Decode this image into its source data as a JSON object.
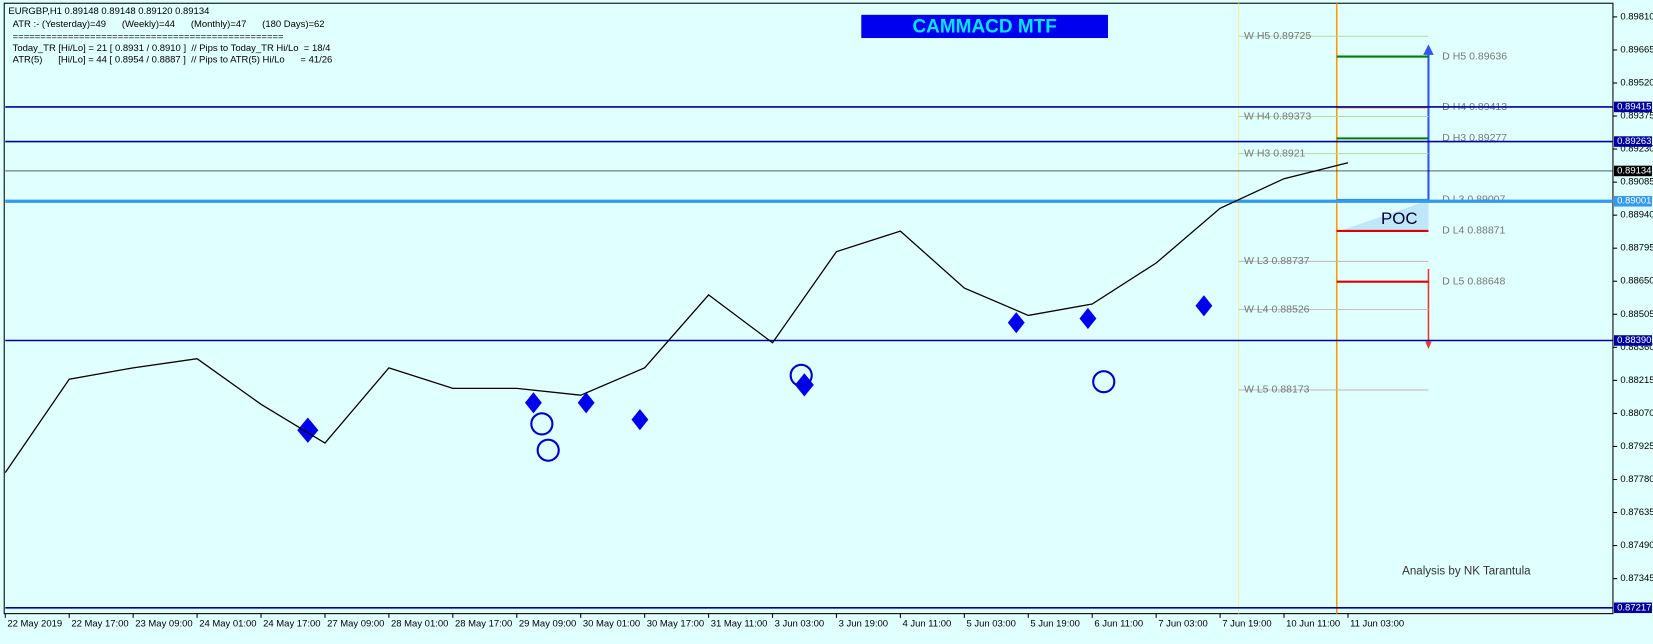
{
  "header": {
    "symbol_line": "EURGBP,H1  0.89148 0.89148 0.89120 0.89134",
    "atr_line": "ATR :- (Yesterday)=49      (Weekly)=44      (Monthly)=47      (180 Days)=62",
    "separator": "=================================================",
    "today_line": "Today_TR [Hi/Lo] = 21 [ 0.8931 / 0.8910 ]  // Pips to Today_TR Hi/Lo  = 18/4",
    "atr5_line": "ATR(5)      [Hi/Lo] = 44 [ 0.8954 / 0.8887 ]  // Pips to ATR(5) Hi/Lo      = 41/26"
  },
  "chart_data": {
    "type": "line",
    "title": "CAMMACD MTF",
    "categories": [
      "22 May 2019",
      "22 May 17:00",
      "23 May 09:00",
      "24 May 01:00",
      "24 May 17:00",
      "27 May 09:00",
      "28 May 01:00",
      "28 May 17:00",
      "29 May 09:00",
      "30 May 01:00",
      "30 May 17:00",
      "31 May 11:00",
      "3 Jun 03:00",
      "3 Jun 19:00",
      "4 Jun 11:00",
      "5 Jun 03:00",
      "5 Jun 19:00",
      "6 Jun 11:00",
      "7 Jun 03:00",
      "7 Jun 19:00",
      "10 Jun 11:00",
      "11 Jun 03:00"
    ],
    "series": [
      {
        "name": "EURGBP",
        "color": "#000000",
        "values": [
          0.8781,
          0.8822,
          0.8827,
          0.8831,
          0.8811,
          0.8794,
          0.8827,
          0.8818,
          0.8818,
          0.8815,
          0.8827,
          0.8859,
          0.8838,
          0.8878,
          0.8887,
          0.8862,
          0.885,
          0.8855,
          0.8873,
          0.8897,
          0.891,
          0.8917
        ]
      }
    ],
    "ylim": [
      0.87122,
      0.8987
    ],
    "yticks": [
      {
        "value": 0.8981,
        "label": "0.89810"
      },
      {
        "value": 0.89665,
        "label": "0.89665"
      },
      {
        "value": 0.8952,
        "label": "0.89520"
      },
      {
        "value": 0.89375,
        "label": "0.89375"
      },
      {
        "value": 0.8923,
        "label": "0.89230"
      },
      {
        "value": 0.89085,
        "label": "0.89085"
      },
      {
        "value": 0.8894,
        "label": "0.88940"
      },
      {
        "value": 0.88795,
        "label": "0.88795"
      },
      {
        "value": 0.8865,
        "label": "0.88650"
      },
      {
        "value": 0.88505,
        "label": "0.88505"
      },
      {
        "value": 0.8836,
        "label": "0.88360"
      },
      {
        "value": 0.88215,
        "label": "0.88215"
      },
      {
        "value": 0.8807,
        "label": "0.88070"
      },
      {
        "value": 0.87925,
        "label": "0.87925"
      },
      {
        "value": 0.8778,
        "label": "0.87780"
      },
      {
        "value": 0.87635,
        "label": "0.87635"
      },
      {
        "value": 0.8749,
        "label": "0.87490"
      },
      {
        "value": 0.87345,
        "label": "0.87345"
      }
    ],
    "levels": [
      {
        "value": 0.89415,
        "label": "0.89415",
        "color": "#00009c"
      },
      {
        "value": 0.89263,
        "label": "0.89263",
        "color": "#00009c"
      },
      {
        "value": 0.89134,
        "label": "0.89134",
        "color": "#000000"
      },
      {
        "value": 0.89001,
        "label": "0.89001",
        "color": "#3399ee"
      },
      {
        "value": 0.8839,
        "label": "0.88390",
        "color": "#00009c"
      },
      {
        "value": 0.87217,
        "label": "0.87217",
        "color": "#00009c"
      }
    ],
    "pivots": [
      {
        "value": 0.89725,
        "label": "W  H5 0.89725",
        "color": "#b8d8a0"
      },
      {
        "value": 0.89373,
        "label": "W  H4 0.89373",
        "color": "#b8d8a0"
      },
      {
        "value": 0.8921,
        "label": "W  H3 0.8921",
        "color": "#b8d8a0"
      },
      {
        "value": 0.88737,
        "label": "W  L3 0.88737",
        "color": "#c0c0c0"
      },
      {
        "value": 0.88526,
        "label": "W  L4 0.88526",
        "color": "#c0c0c0"
      },
      {
        "value": 0.88173,
        "label": "W  L5 0.88173",
        "color": "#c0c0c0"
      },
      {
        "value": 0.89636,
        "label": "D  H5 0.89636",
        "color": "#008000"
      },
      {
        "value": 0.89413,
        "label": "D  H4 0.89413",
        "color": "#ff8c00"
      },
      {
        "value": 0.89277,
        "label": "D  H3 0.89277",
        "color": "#008000"
      },
      {
        "value": 0.89007,
        "label": "D  L3 0.89007",
        "color": "#1e90ff"
      },
      {
        "value": 0.88871,
        "label": "D  L4 0.88871",
        "color": "#dd0000"
      },
      {
        "value": 0.88648,
        "label": "D  L5 0.88648",
        "color": "#dd0000"
      }
    ],
    "poc_label": "POC",
    "credit": "Analysis by NK Tarantula"
  }
}
